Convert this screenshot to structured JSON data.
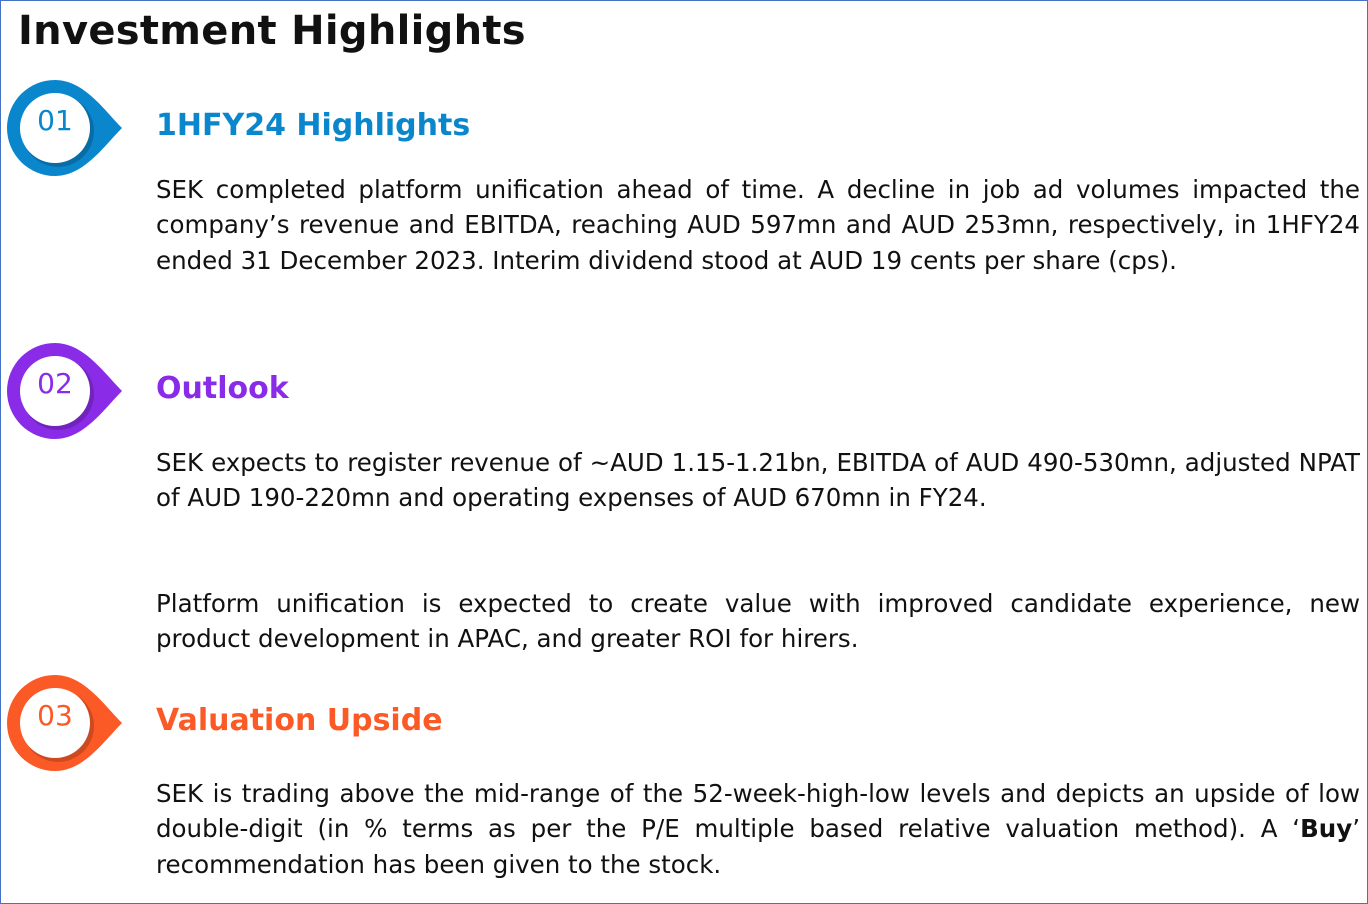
{
  "title": "Investment Highlights",
  "sections": [
    {
      "number": "01",
      "heading": "1HFY24 Highlights",
      "color": "#0a86cc",
      "icon": "numbered-pin-badge",
      "paragraphs": [
        "SEK completed platform unification ahead of time. A decline in job ad volumes impacted the company’s revenue and EBITDA, reaching AUD 597mn and AUD 253mn, respectively, in 1HFY24 ended 31 December 2023. Interim dividend stood at AUD 19 cents per share (cps)."
      ]
    },
    {
      "number": "02",
      "heading": "Outlook",
      "color": "#8a2be8",
      "icon": "numbered-pin-badge",
      "paragraphs": [
        "SEK expects to register revenue of ~AUD 1.15-1.21bn, EBITDA of AUD 490-530mn, adjusted NPAT of AUD 190-220mn and operating expenses of AUD 670mn in FY24.",
        "Platform unification is expected to create value with improved candidate experience, new product development in APAC, and greater ROI for hirers."
      ]
    },
    {
      "number": "03",
      "heading": "Valuation Upside",
      "color": "#fb5a26",
      "icon": "numbered-pin-badge",
      "paragraphs": [
        "SEK is trading above the mid-range of the 52-week-high-low levels and depicts an upside of low double-digit (in % terms as per the P/E multiple based relative valuation method). A ‘"
      ],
      "bold": "Buy",
      "tail": "’ recommendation has been given to the stock."
    }
  ]
}
